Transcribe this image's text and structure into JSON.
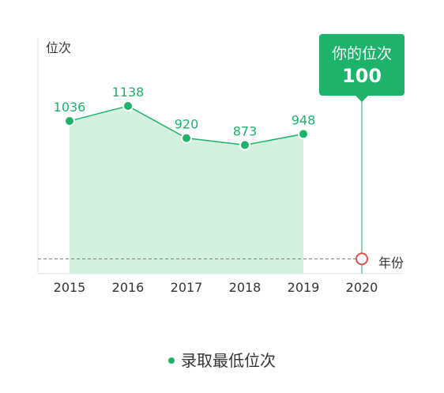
{
  "chart_data": {
    "type": "area",
    "y_axis_label": "位次",
    "x_axis_label": "年份",
    "categories": [
      "2015",
      "2016",
      "2017",
      "2018",
      "2019",
      "2020"
    ],
    "series": [
      {
        "name": "录取最低位次",
        "x": [
          "2015",
          "2016",
          "2017",
          "2018",
          "2019"
        ],
        "values": [
          1036,
          1138,
          920,
          873,
          948
        ]
      }
    ],
    "y_axis_inverted": false,
    "y_range": [
      0,
      1600
    ],
    "grid": false,
    "legend_position": "bottom",
    "reference": {
      "label": "你的位次",
      "x": "2020",
      "value": 100,
      "line_style": "dashed"
    }
  },
  "colors": {
    "accent": "#1db36b",
    "area_fill": "#d4f1e0",
    "marker_stroke": "#d9534f",
    "axis": "#e0e0e0",
    "dashed": "#777777"
  }
}
